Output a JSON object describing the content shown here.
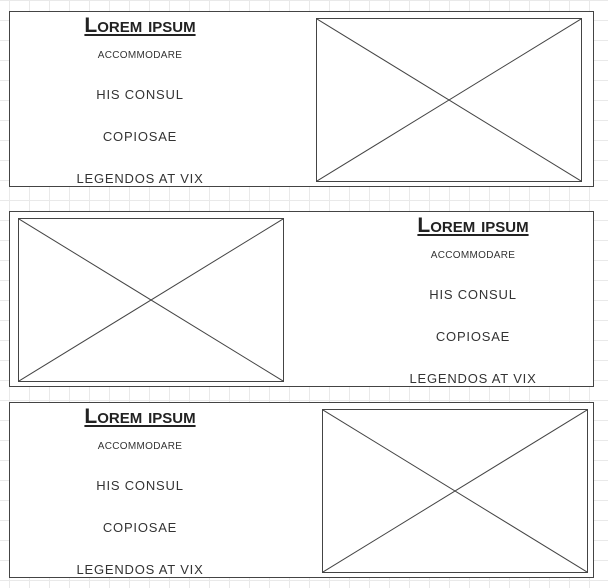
{
  "sections": [
    {
      "title": "Lorem ipsum",
      "subtitle": "ACCOMMODARE",
      "links": [
        "HIS CONSUL",
        "COPIOSAE",
        "LEGENDOS AT VIX"
      ],
      "image": "image-placeholder"
    },
    {
      "title": "Lorem ipsum",
      "subtitle": "ACCOMMODARE",
      "links": [
        "HIS CONSUL",
        "COPIOSAE",
        "LEGENDOS AT VIX"
      ],
      "image": "image-placeholder"
    },
    {
      "title": "Lorem ipsum",
      "subtitle": "ACCOMMODARE",
      "links": [
        "HIS CONSUL",
        "COPIOSAE",
        "LEGENDOS AT VIX"
      ],
      "image": "image-placeholder"
    }
  ],
  "colors": {
    "border": "#444444",
    "text": "#333333",
    "grid": "#e9e9e9"
  }
}
